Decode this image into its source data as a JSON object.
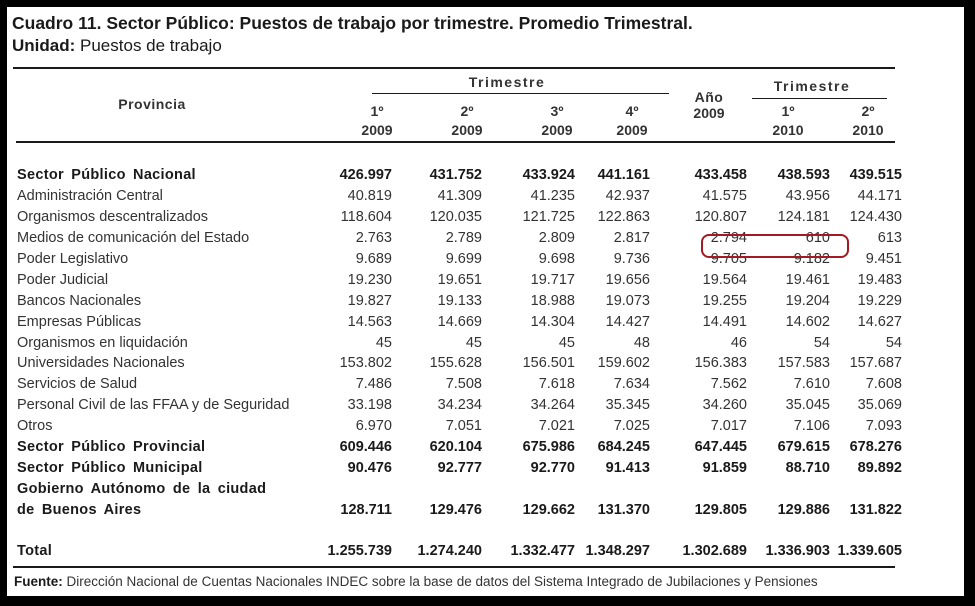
{
  "title": "Cuadro 11. Sector Público: Puestos de trabajo por trimestre. Promedio Trimestral.",
  "unit": {
    "label": "Unidad:",
    "value": "Puestos de trabajo"
  },
  "table": {
    "header": {
      "provincia": "Provincia",
      "trimestre_2009": "Trimestre",
      "anio": "Año",
      "anio_year": "2009",
      "trimestre_2010": "Trimestre",
      "columns": [
        {
          "q": "1º",
          "year": "2009"
        },
        {
          "q": "2º",
          "year": "2009"
        },
        {
          "q": "3º",
          "year": "2009"
        },
        {
          "q": "4º",
          "year": "2009"
        },
        {
          "q": "",
          "year": ""
        },
        {
          "q": "1º",
          "year": "2010"
        },
        {
          "q": "2º",
          "year": "2010"
        }
      ]
    },
    "rows": [
      {
        "label": "Sector Público Nacional",
        "bold": true,
        "values": [
          "426.997",
          "431.752",
          "433.924",
          "441.161",
          "433.458",
          "438.593",
          "439.515"
        ]
      },
      {
        "label": "Administración Central",
        "bold": false,
        "values": [
          "40.819",
          "41.309",
          "41.235",
          "42.937",
          "41.575",
          "43.956",
          "44.171"
        ]
      },
      {
        "label": "Organismos  descentralizados",
        "bold": false,
        "values": [
          "118.604",
          "120.035",
          "121.725",
          "122.863",
          "120.807",
          "124.181",
          "124.430"
        ]
      },
      {
        "label": "Medios de comunicación del Estado",
        "bold": false,
        "values": [
          "2.763",
          "2.789",
          "2.809",
          "2.817",
          "2.794",
          "610",
          "613"
        ]
      },
      {
        "label": "Poder Legislativo",
        "bold": false,
        "values": [
          "9.689",
          "9.699",
          "9.698",
          "9.736",
          "9.705",
          "9.182",
          "9.451"
        ]
      },
      {
        "label": "Poder Judicial",
        "bold": false,
        "values": [
          "19.230",
          "19.651",
          "19.717",
          "19.656",
          "19.564",
          "19.461",
          "19.483"
        ]
      },
      {
        "label": "Bancos Nacionales",
        "bold": false,
        "values": [
          "19.827",
          "19.133",
          "18.988",
          "19.073",
          "19.255",
          "19.204",
          "19.229"
        ]
      },
      {
        "label": "Empresas Públicas",
        "bold": false,
        "values": [
          "14.563",
          "14.669",
          "14.304",
          "14.427",
          "14.491",
          "14.602",
          "14.627"
        ]
      },
      {
        "label": "Organismos en liquidación",
        "bold": false,
        "values": [
          "45",
          "45",
          "45",
          "48",
          "46",
          "54",
          "54"
        ]
      },
      {
        "label": "Universidades Nacionales",
        "bold": false,
        "values": [
          "153.802",
          "155.628",
          "156.501",
          "159.602",
          "156.383",
          "157.583",
          "157.687"
        ]
      },
      {
        "label": "Servicios de Salud",
        "bold": false,
        "values": [
          "7.486",
          "7.508",
          "7.618",
          "7.634",
          "7.562",
          "7.610",
          "7.608"
        ]
      },
      {
        "label": "Personal Civil de las FFAA y de Seguridad",
        "bold": false,
        "values": [
          "33.198",
          "34.234",
          "34.264",
          "35.345",
          "34.260",
          "35.045",
          "35.069"
        ]
      },
      {
        "label": "Otros",
        "bold": false,
        "values": [
          "6.970",
          "7.051",
          "7.021",
          "7.025",
          "7.017",
          "7.106",
          "7.093"
        ]
      },
      {
        "label": "Sector Público Provincial",
        "bold": true,
        "values": [
          "609.446",
          "620.104",
          "675.986",
          "684.245",
          "647.445",
          "679.615",
          "678.276"
        ]
      },
      {
        "label": "Sector Público Municipal",
        "bold": true,
        "values": [
          "90.476",
          "92.777",
          "92.770",
          "91.413",
          "91.859",
          "88.710",
          "89.892"
        ]
      },
      {
        "label": "Gobierno Autónomo de la ciudad",
        "bold": true,
        "values": [
          "",
          "",
          "",
          "",
          "",
          "",
          ""
        ]
      },
      {
        "label": "de Buenos Aires",
        "bold": true,
        "values": [
          "128.711",
          "129.476",
          "129.662",
          "131.370",
          "129.805",
          "129.886",
          "131.822"
        ]
      },
      {
        "label": "Total",
        "bold": true,
        "values": [
          "1.255.739",
          "1.274.240",
          "1.332.477",
          "1.348.297",
          "1.302.689",
          "1.336.903",
          "1.339.605"
        ]
      }
    ],
    "highlight": {
      "row": "Medios de comunicación del Estado",
      "cells": [
        "2.794",
        "610"
      ],
      "color": "#a31a22"
    }
  },
  "source": {
    "label": "Fuente:",
    "text": " Dirección Nacional de Cuentas Nacionales INDEC sobre la base de datos del Sistema Integrado de Jubilaciones y Pensiones"
  }
}
